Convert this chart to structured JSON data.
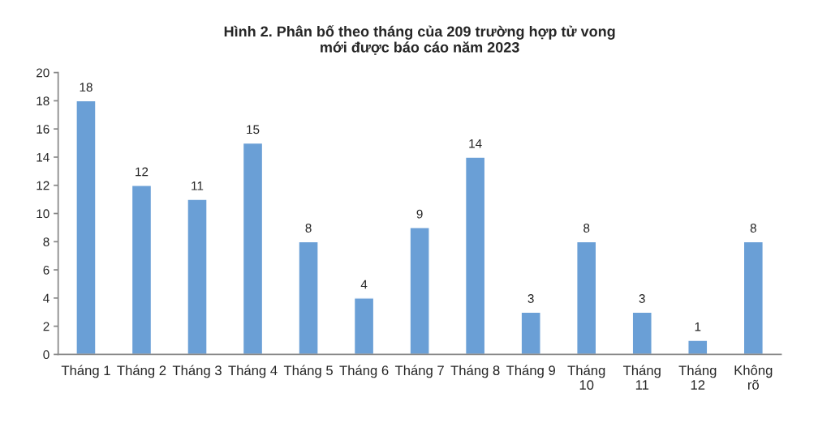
{
  "chart_data": {
    "type": "bar",
    "title": "Hình 2. Phân bố theo tháng của 209 trường hợp tử vong\nmới được báo cáo năm 2023",
    "categories": [
      "Tháng 1",
      "Tháng 2",
      "Tháng 3",
      "Tháng 4",
      "Tháng 5",
      "Tháng 6",
      "Tháng 7",
      "Tháng 8",
      "Tháng 9",
      "Tháng 10",
      "Tháng 11",
      "Tháng 12",
      "Không rõ"
    ],
    "values": [
      18,
      12,
      11,
      15,
      8,
      4,
      9,
      14,
      3,
      8,
      3,
      1,
      8
    ],
    "color": "#6a9fd6",
    "ylim": [
      0,
      20
    ],
    "yticks": [
      0,
      2,
      4,
      6,
      8,
      10,
      12,
      14,
      16,
      18,
      20
    ],
    "grid": false,
    "data_labels": true,
    "legend": false
  }
}
